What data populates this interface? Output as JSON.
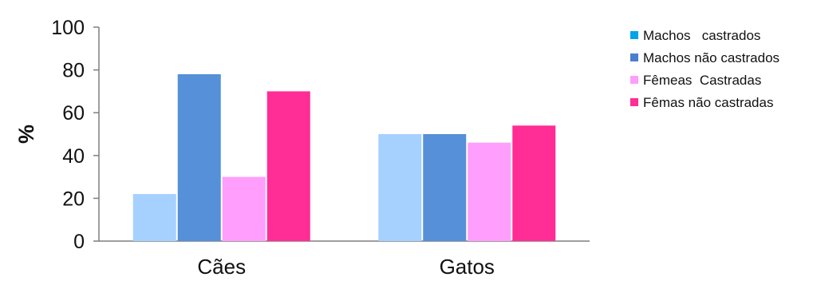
{
  "chart_data": {
    "type": "bar",
    "title": "",
    "xlabel": "",
    "ylabel": "%",
    "ylim": [
      0,
      100
    ],
    "yticks": [
      0,
      20,
      40,
      60,
      80,
      100
    ],
    "grid": false,
    "legend_position": "right",
    "categories": [
      "Cães",
      "Gatos"
    ],
    "series": [
      {
        "name": "Machos   castrados",
        "values": [
          22,
          50
        ],
        "bar_color": "#a6d1ff",
        "legend_color": "#00a3e8"
      },
      {
        "name": "Machos não castrados",
        "values": [
          78,
          50
        ],
        "bar_color": "#5590d8",
        "legend_color": "#4a7fd0"
      },
      {
        "name": "Fêmeas  Castradas",
        "values": [
          30,
          46
        ],
        "bar_color": "#ff9efc",
        "legend_color": "#ff9ef8"
      },
      {
        "name": "Fêmas não castradas",
        "values": [
          70,
          54
        ],
        "bar_color": "#ff2d95",
        "legend_color": "#ff2d95"
      }
    ]
  }
}
